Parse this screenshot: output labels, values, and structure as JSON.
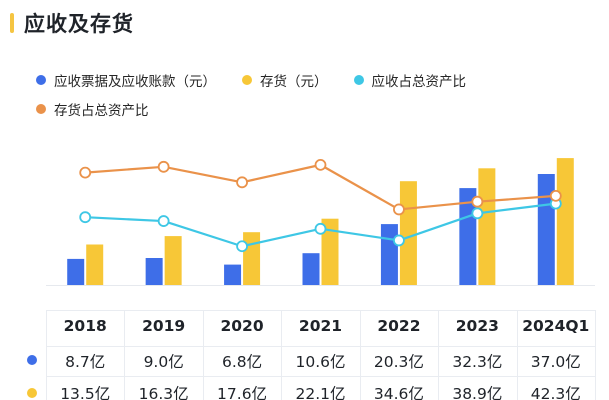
{
  "title": "应收及存货",
  "colors": {
    "title_accent": "#f5c542",
    "receivables": "#3e6ee8",
    "inventory": "#f7c737",
    "receivables_ratio": "#3ec7e5",
    "inventory_ratio": "#ea924a"
  },
  "legend": [
    {
      "label": "应收票据及应收账款（元）",
      "color": "#3e6ee8"
    },
    {
      "label": "存货（元）",
      "color": "#f7c737"
    },
    {
      "label": "应收占总资产比",
      "color": "#3ec7e5"
    },
    {
      "label": "存货占总资产比",
      "color": "#ea924a"
    }
  ],
  "chart_data": {
    "type": "bar",
    "categories": [
      "2018",
      "2019",
      "2020",
      "2021",
      "2022",
      "2023",
      "2024Q1"
    ],
    "series": [
      {
        "name": "应收票据及应收账款（元）",
        "kind": "bar",
        "unit": "亿",
        "values": [
          8.7,
          9.0,
          6.8,
          10.6,
          20.3,
          32.3,
          37.0
        ]
      },
      {
        "name": "存货（元）",
        "kind": "bar",
        "unit": "亿",
        "values": [
          13.5,
          16.3,
          17.6,
          22.1,
          34.6,
          38.9,
          42.3
        ]
      },
      {
        "name": "应收占总资产比",
        "kind": "line",
        "values": [
          0.35,
          0.33,
          0.2,
          0.29,
          0.23,
          0.37,
          0.42
        ]
      },
      {
        "name": "存货占总资产比",
        "kind": "line",
        "values": [
          0.58,
          0.61,
          0.53,
          0.62,
          0.39,
          0.43,
          0.46
        ]
      }
    ],
    "table": {
      "receivables": [
        "8.7亿",
        "9.0亿",
        "6.8亿",
        "10.6亿",
        "20.3亿",
        "32.3亿",
        "37.0亿"
      ],
      "inventory": [
        "13.5亿",
        "16.3亿",
        "17.6亿",
        "22.1亿",
        "34.6亿",
        "38.9亿",
        "42.3亿"
      ]
    },
    "bar_axis_max": 45,
    "line_axis_range": [
      0,
      0.8
    ]
  }
}
